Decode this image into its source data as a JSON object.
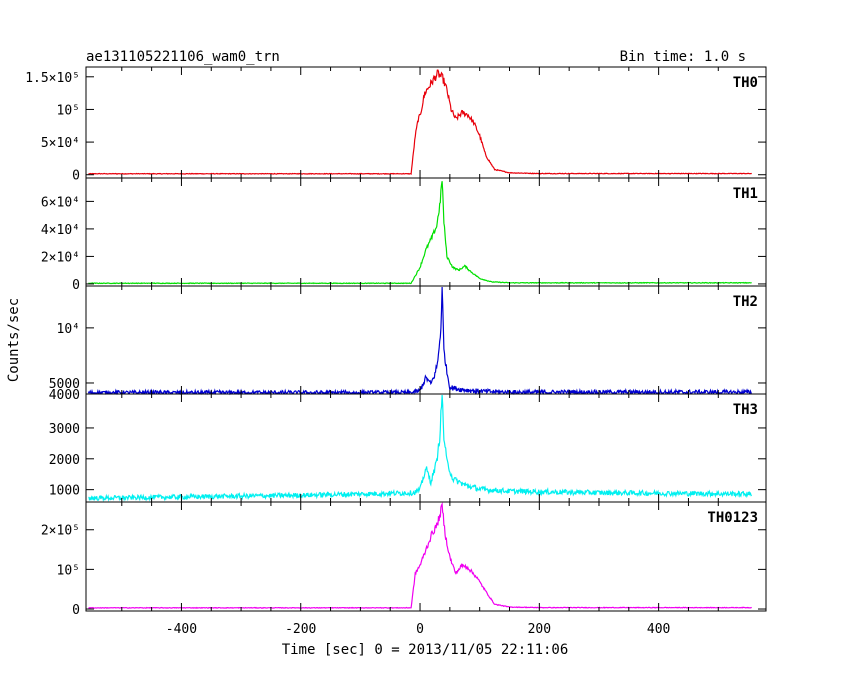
{
  "chart_data": {
    "type": "line",
    "title_left": "ae131105221106_wam0_trn",
    "title_right": "Bin time: 1.0 s",
    "xlabel": "Time [sec] 0 = 2013/11/05 22:11:06",
    "ylabel": "Counts/sec",
    "xlim": [
      -560,
      580
    ],
    "xticks": [
      -400,
      -200,
      0,
      200,
      400
    ],
    "panels": [
      {
        "name": "TH0",
        "color": "#e8000b",
        "ylim": [
          -5000,
          165000
        ],
        "yticks": [
          {
            "v": 0,
            "label": "0"
          },
          {
            "v": 50000,
            "label": "5×10⁴"
          },
          {
            "v": 100000,
            "label": "10⁵"
          },
          {
            "v": 150000,
            "label": "1.5×10⁵"
          }
        ],
        "baseline": 1500,
        "noise": 400,
        "profile": [
          [
            -15,
            1500
          ],
          [
            -8,
            60000
          ],
          [
            -3,
            85000
          ],
          [
            0,
            90000
          ],
          [
            8,
            125000
          ],
          [
            15,
            135000
          ],
          [
            22,
            145000
          ],
          [
            30,
            155000
          ],
          [
            38,
            148000
          ],
          [
            45,
            130000
          ],
          [
            52,
            100000
          ],
          [
            60,
            85000
          ],
          [
            70,
            95000
          ],
          [
            80,
            92000
          ],
          [
            90,
            80000
          ],
          [
            100,
            60000
          ],
          [
            110,
            30000
          ],
          [
            125,
            8000
          ],
          [
            150,
            3000
          ],
          [
            200,
            1800
          ]
        ]
      },
      {
        "name": "TH1",
        "color": "#00e000",
        "ylim": [
          -1500,
          77000
        ],
        "yticks": [
          {
            "v": 0,
            "label": "0"
          },
          {
            "v": 20000,
            "label": "2×10⁴"
          },
          {
            "v": 40000,
            "label": "4×10⁴"
          },
          {
            "v": 60000,
            "label": "6×10⁴"
          }
        ],
        "baseline": 500,
        "noise": 200,
        "profile": [
          [
            -15,
            500
          ],
          [
            -8,
            6000
          ],
          [
            0,
            12000
          ],
          [
            10,
            25000
          ],
          [
            20,
            34000
          ],
          [
            28,
            42000
          ],
          [
            34,
            60000
          ],
          [
            37,
            77000
          ],
          [
            40,
            45000
          ],
          [
            45,
            20000
          ],
          [
            55,
            12000
          ],
          [
            65,
            10000
          ],
          [
            75,
            13000
          ],
          [
            85,
            9000
          ],
          [
            100,
            4000
          ],
          [
            120,
            1500
          ],
          [
            150,
            800
          ]
        ]
      },
      {
        "name": "TH2",
        "color": "#0000d0",
        "ylim": [
          4000,
          13800
        ],
        "yticks": [
          {
            "v": 4000,
            "label": "4000"
          },
          {
            "v": 5000,
            "label": "5000"
          },
          {
            "v": 10000,
            "label": "10⁴"
          }
        ],
        "baseline": 4100,
        "noise": 50,
        "profile": [
          [
            -15,
            4100
          ],
          [
            0,
            4300
          ],
          [
            10,
            5500
          ],
          [
            18,
            4900
          ],
          [
            25,
            5800
          ],
          [
            30,
            7000
          ],
          [
            35,
            10000
          ],
          [
            37,
            13800
          ],
          [
            40,
            8000
          ],
          [
            45,
            6000
          ],
          [
            50,
            4600
          ],
          [
            70,
            4400
          ],
          [
            100,
            4250
          ],
          [
            150,
            4150
          ]
        ]
      },
      {
        "name": "TH3",
        "color": "#00f0f0",
        "ylim": [
          600,
          4100
        ],
        "yticks": [
          {
            "v": 1000,
            "label": "1000"
          },
          {
            "v": 2000,
            "label": "2000"
          },
          {
            "v": 3000,
            "label": "3000"
          }
        ],
        "baseline": 850,
        "noise": 45,
        "profile": [
          [
            -560,
            720
          ],
          [
            -200,
            820
          ],
          [
            -50,
            880
          ],
          [
            -10,
            900
          ],
          [
            0,
            1000
          ],
          [
            10,
            1700
          ],
          [
            18,
            1250
          ],
          [
            28,
            1900
          ],
          [
            33,
            2700
          ],
          [
            37,
            4100
          ],
          [
            40,
            2700
          ],
          [
            45,
            1900
          ],
          [
            55,
            1350
          ],
          [
            75,
            1150
          ],
          [
            100,
            1020
          ],
          [
            150,
            950
          ],
          [
            300,
            900
          ],
          [
            560,
            860
          ]
        ]
      },
      {
        "name": "TH0123",
        "color": "#f000f0",
        "ylim": [
          -5000,
          270000
        ],
        "yticks": [
          {
            "v": 0,
            "label": "0"
          },
          {
            "v": 100000,
            "label": "10⁵"
          },
          {
            "v": 200000,
            "label": "2×10⁵"
          }
        ],
        "baseline": 3000,
        "noise": 600,
        "profile": [
          [
            -15,
            3000
          ],
          [
            -8,
            90000
          ],
          [
            0,
            110000
          ],
          [
            10,
            150000
          ],
          [
            20,
            190000
          ],
          [
            28,
            210000
          ],
          [
            34,
            240000
          ],
          [
            37,
            260000
          ],
          [
            42,
            190000
          ],
          [
            50,
            130000
          ],
          [
            60,
            90000
          ],
          [
            70,
            110000
          ],
          [
            80,
            105000
          ],
          [
            95,
            80000
          ],
          [
            110,
            45000
          ],
          [
            125,
            12000
          ],
          [
            150,
            5000
          ],
          [
            200,
            3500
          ]
        ]
      }
    ]
  }
}
